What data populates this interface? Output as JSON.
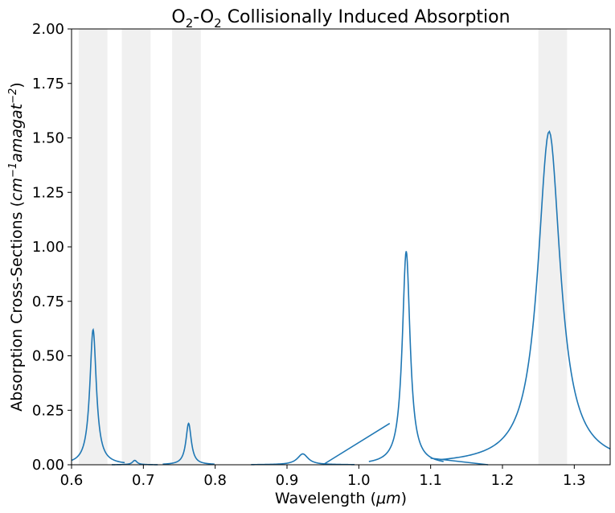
{
  "chart_data": {
    "type": "line",
    "title": "O2-O2 Collisionally Induced Absorption",
    "title_parts": {
      "a": "O",
      "sub1": "2",
      "dash": "-O",
      "sub2": "2",
      "rest": " Collisionally Induced Absorption"
    },
    "xlabel": "Wavelength (μm)",
    "xlabel_parts": {
      "pre": "Wavelength (",
      "mu": "μ",
      "unit": "m",
      "post": ")"
    },
    "ylabel": "Absorption Cross-Sections (cm⁻¹amagat⁻²)",
    "ylabel_parts": {
      "pre": "Absorption Cross-Sections (",
      "cm": "cm",
      "exp1": "−1",
      "amagat": "amagat",
      "exp2": "−2",
      "post": ")"
    },
    "xlim": [
      0.6,
      1.35
    ],
    "ylim": [
      0.0,
      2.0
    ],
    "xticks": [
      "0.6",
      "0.7",
      "0.8",
      "0.9",
      "1.0",
      "1.1",
      "1.2",
      "1.3"
    ],
    "yticks": [
      "0.00",
      "0.25",
      "0.50",
      "0.75",
      "1.00",
      "1.25",
      "1.50",
      "1.75",
      "2.00"
    ],
    "grid": false,
    "line_color": "#1f77b4",
    "band_color": "#f0f0f0",
    "shaded_bands": [
      [
        0.61,
        0.65
      ],
      [
        0.67,
        0.71
      ],
      [
        0.74,
        0.78
      ],
      [
        1.25,
        1.29
      ]
    ],
    "series": [
      {
        "peaks": [
          {
            "center": 0.63,
            "height": 0.62,
            "width": 0.0055
          },
          {
            "center": 0.688,
            "height": 0.02,
            "width": 0.004
          },
          {
            "center": 0.763,
            "height": 0.19,
            "width": 0.0045
          },
          {
            "center": 0.922,
            "height": 0.05,
            "width": 0.009
          },
          {
            "center": 1.066,
            "height": 0.98,
            "width": 0.0065
          },
          {
            "center": 1.265,
            "height": 1.53,
            "width": 0.019
          }
        ],
        "segments": [
          {
            "x": [
              0.95,
              1.043
            ],
            "y": [
              0.0,
              0.19
            ]
          },
          {
            "x": [
              1.1,
              1.18
            ],
            "y": [
              0.03,
              0.0
            ]
          }
        ]
      }
    ]
  }
}
